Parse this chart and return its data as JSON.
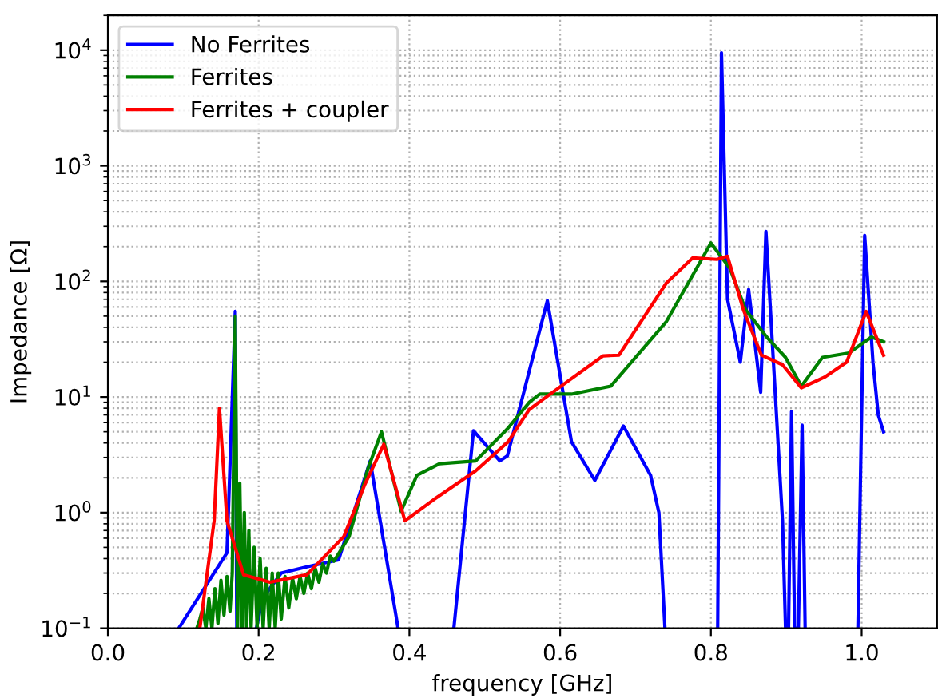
{
  "chart_data": {
    "type": "line",
    "xlabel": "frequency [GHz]",
    "ylabel": "Impedance [Ω]",
    "xlim": [
      0,
      1.1
    ],
    "ylim": [
      0.1,
      20000
    ],
    "log": "y",
    "xticks": [
      {
        "value": 0,
        "label": "0.0"
      },
      0.2,
      0.4,
      0.6,
      0.8,
      {
        "value": 1,
        "label": "1.0"
      }
    ],
    "yticks": [
      {
        "value": 0.1,
        "label": "10$^{−1}$"
      },
      {
        "value": 1,
        "label": "10$^{0}$"
      },
      {
        "value": 10,
        "label": "10$^{1}$"
      },
      {
        "value": 100,
        "label": "10$^{2}$"
      },
      {
        "value": 1000,
        "label": "10$^{3}$"
      },
      {
        "value": 10000,
        "label": "10$^{4}$"
      }
    ],
    "grid": true,
    "legend": "top left",
    "series": [
      {
        "name": "No Ferrites",
        "color": "#0000ff",
        "x": [
          0.094,
          0.158,
          0.169,
          0.171,
          0.185,
          0.197,
          0.205,
          0.23,
          0.264,
          0.306,
          0.348,
          0.385,
          0.42,
          0.459,
          0.485,
          0.52,
          0.53,
          0.583,
          0.615,
          0.646,
          0.684,
          0.72,
          0.731,
          0.739,
          0.77,
          0.809,
          0.814,
          0.822,
          0.839,
          0.85,
          0.866,
          0.873,
          0.895,
          0.899,
          0.903,
          0.907,
          0.911,
          0.916,
          0.921,
          0.925,
          0.96,
          0.995,
          1.004,
          1.015,
          1.022,
          1.029
        ],
        "values": [
          0.1,
          0.45,
          55,
          0.1,
          null,
          0.1,
          0.18,
          0.3,
          0.34,
          0.39,
          2.8,
          0.1,
          null,
          0.1,
          5.1,
          2.8,
          3.1,
          68,
          4.1,
          1.9,
          5.6,
          2.1,
          1.0,
          0.1,
          null,
          0.1,
          9500,
          70,
          20,
          85,
          11,
          270,
          0.85,
          0.1,
          0.1,
          7.5,
          0.1,
          0.1,
          5.7,
          0.1,
          null,
          0.1,
          250,
          20,
          7,
          5
        ]
      },
      {
        "name": "Ferrites",
        "color": "#008000",
        "x": [
          0.118,
          0.122,
          0.126,
          0.13,
          0.134,
          0.138,
          0.142,
          0.146,
          0.15,
          0.154,
          0.158,
          0.162,
          0.165,
          0.169,
          0.172,
          0.175,
          0.178,
          0.181,
          0.184,
          0.187,
          0.19,
          0.194,
          0.198,
          0.202,
          0.206,
          0.21,
          0.214,
          0.218,
          0.222,
          0.226,
          0.23,
          0.235,
          0.24,
          0.245,
          0.25,
          0.255,
          0.26,
          0.265,
          0.27,
          0.275,
          0.28,
          0.285,
          0.29,
          0.295,
          0.3,
          0.32,
          0.345,
          0.363,
          0.389,
          0.41,
          0.44,
          0.488,
          0.53,
          0.559,
          0.573,
          0.615,
          0.667,
          0.741,
          0.8,
          0.825,
          0.846,
          0.874,
          0.899,
          0.92,
          0.948,
          0.983,
          1.013,
          1.029
        ],
        "values": [
          0.1,
          0.12,
          0.15,
          0.1,
          0.18,
          0.1,
          0.22,
          0.11,
          0.26,
          0.13,
          0.28,
          0.14,
          0.3,
          50,
          0.1,
          1.8,
          0.1,
          1.0,
          0.1,
          0.7,
          0.1,
          0.5,
          0.1,
          0.4,
          0.1,
          0.33,
          0.1,
          0.3,
          0.1,
          0.3,
          0.12,
          0.28,
          0.15,
          0.27,
          0.18,
          0.28,
          0.2,
          0.3,
          0.22,
          0.33,
          0.25,
          0.36,
          0.3,
          0.42,
          0.38,
          0.62,
          2.4,
          5.0,
          1.03,
          2.1,
          2.65,
          2.8,
          5.3,
          9,
          10.6,
          10.6,
          12.4,
          45,
          215,
          130,
          57,
          33,
          22,
          12.4,
          22,
          24,
          33,
          30
        ]
      },
      {
        "name": "Ferrites + coupler",
        "color": "#ff0000",
        "x": [
          0.122,
          0.141,
          0.148,
          0.158,
          0.18,
          0.215,
          0.264,
          0.313,
          0.341,
          0.366,
          0.394,
          0.432,
          0.488,
          0.531,
          0.559,
          0.601,
          0.657,
          0.678,
          0.741,
          0.776,
          0.808,
          0.822,
          0.843,
          0.867,
          0.895,
          0.92,
          0.952,
          0.98,
          1.006,
          1.029
        ],
        "values": [
          0.1,
          0.85,
          8,
          0.85,
          0.29,
          0.25,
          0.29,
          0.62,
          1.76,
          3.9,
          0.85,
          1.29,
          2.3,
          4.1,
          7.8,
          12.4,
          22.7,
          23,
          97,
          160,
          155,
          165,
          57,
          23,
          19,
          12,
          15,
          20,
          55,
          23
        ]
      }
    ]
  }
}
